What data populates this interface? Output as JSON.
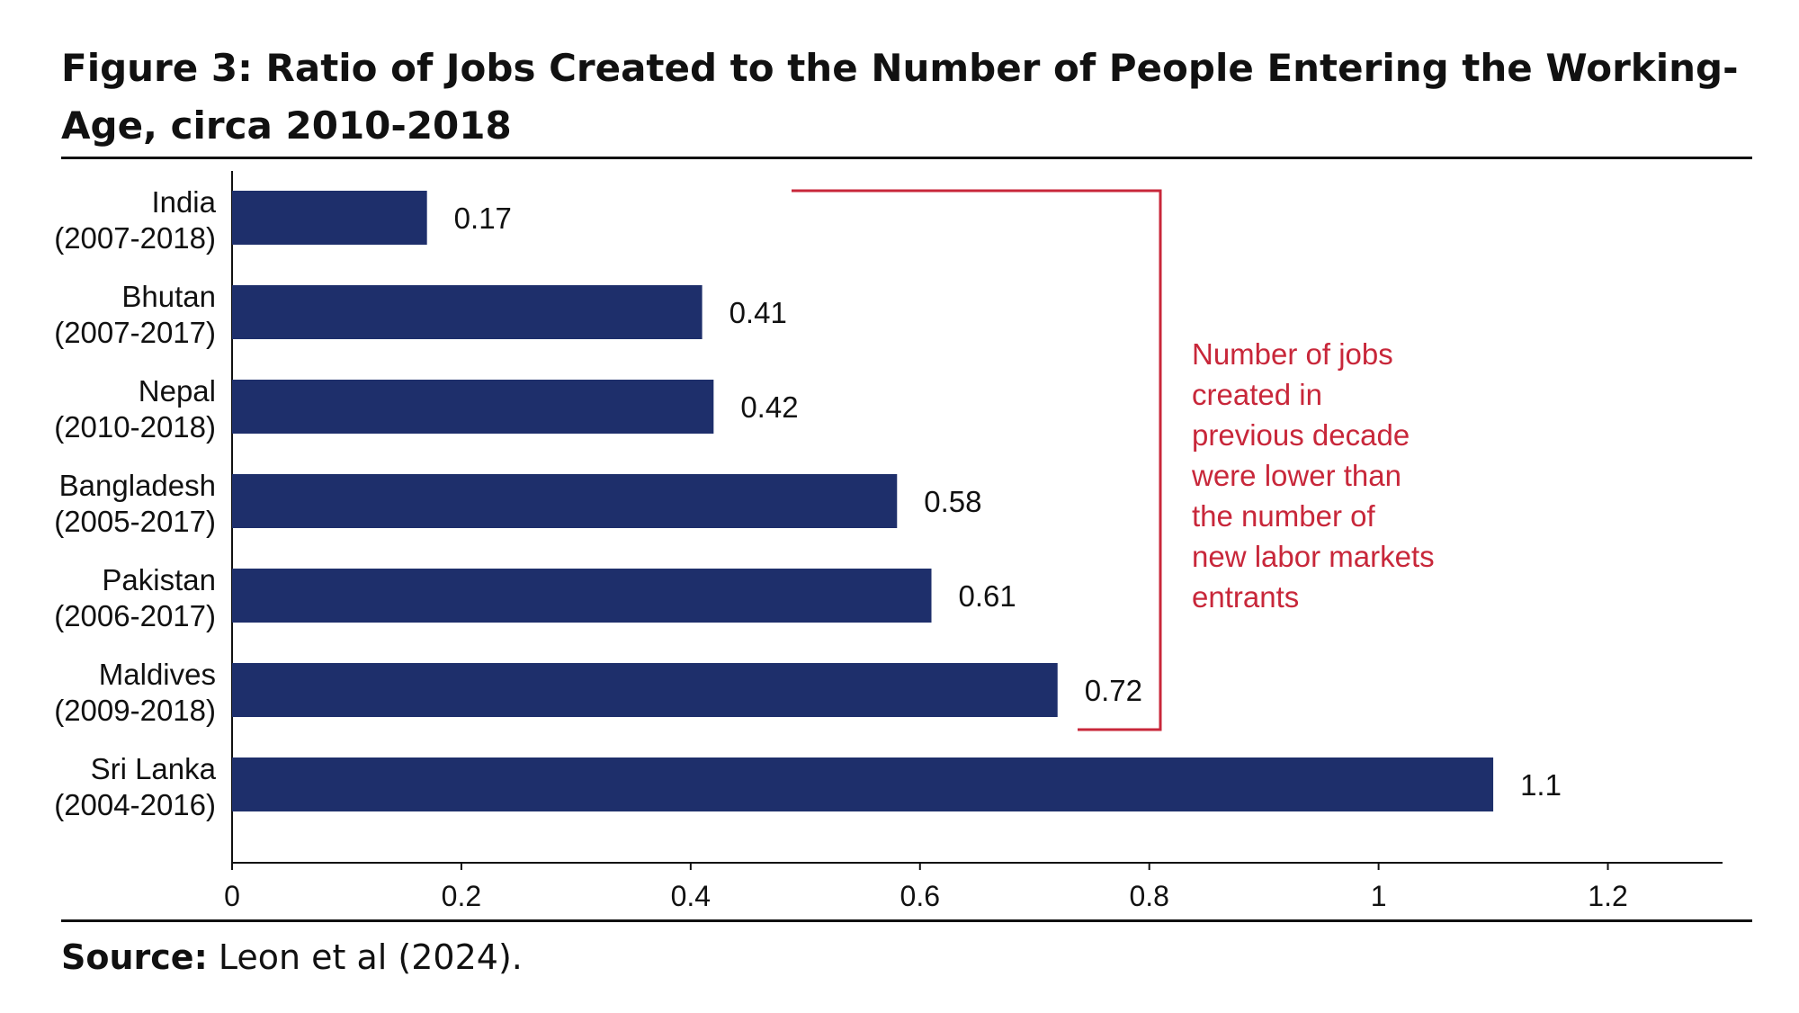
{
  "title": "Figure 3: Ratio of Jobs Created to the Number of People Entering the Working-Age, circa 2010-2018",
  "source_label": "Source:",
  "source_text": "Leon et al (2024).",
  "colors": {
    "bar": "#1e2f6b",
    "annotation": "#c8273a",
    "axis": "#111111"
  },
  "chart_data": {
    "type": "bar",
    "orientation": "horizontal",
    "title": "Figure 3: Ratio of Jobs Created to the Number of People Entering the Working-Age, circa 2010-2018",
    "categories": [
      [
        "India",
        "(2007-2018)"
      ],
      [
        "Bhutan",
        "(2007-2017)"
      ],
      [
        "Nepal",
        "(2010-2018)"
      ],
      [
        "Bangladesh",
        "(2005-2017)"
      ],
      [
        "Pakistan",
        "(2006-2017)"
      ],
      [
        "Maldives",
        "(2009-2018)"
      ],
      [
        "Sri Lanka",
        "(2004-2016)"
      ]
    ],
    "values": [
      0.17,
      0.41,
      0.42,
      0.58,
      0.61,
      0.72,
      1.1
    ],
    "value_labels": [
      "0.17",
      "0.41",
      "0.42",
      "0.58",
      "0.61",
      "0.72",
      "1.1"
    ],
    "xlim": [
      0,
      1.3
    ],
    "xticks": [
      0,
      0.2,
      0.4,
      0.6,
      0.8,
      1,
      1.2
    ],
    "xtick_labels": [
      "0",
      "0.2",
      "0.4",
      "0.6",
      "0.8",
      "1",
      "1.2"
    ],
    "xlabel": "",
    "ylabel": "",
    "grid": false,
    "annotation": {
      "lines": [
        "Number of jobs",
        "created in",
        "previous decade",
        "were lower than",
        "the number of",
        "new labor markets",
        "entrants"
      ],
      "bracket_spans_categories": [
        "India",
        "Maldives"
      ]
    }
  }
}
